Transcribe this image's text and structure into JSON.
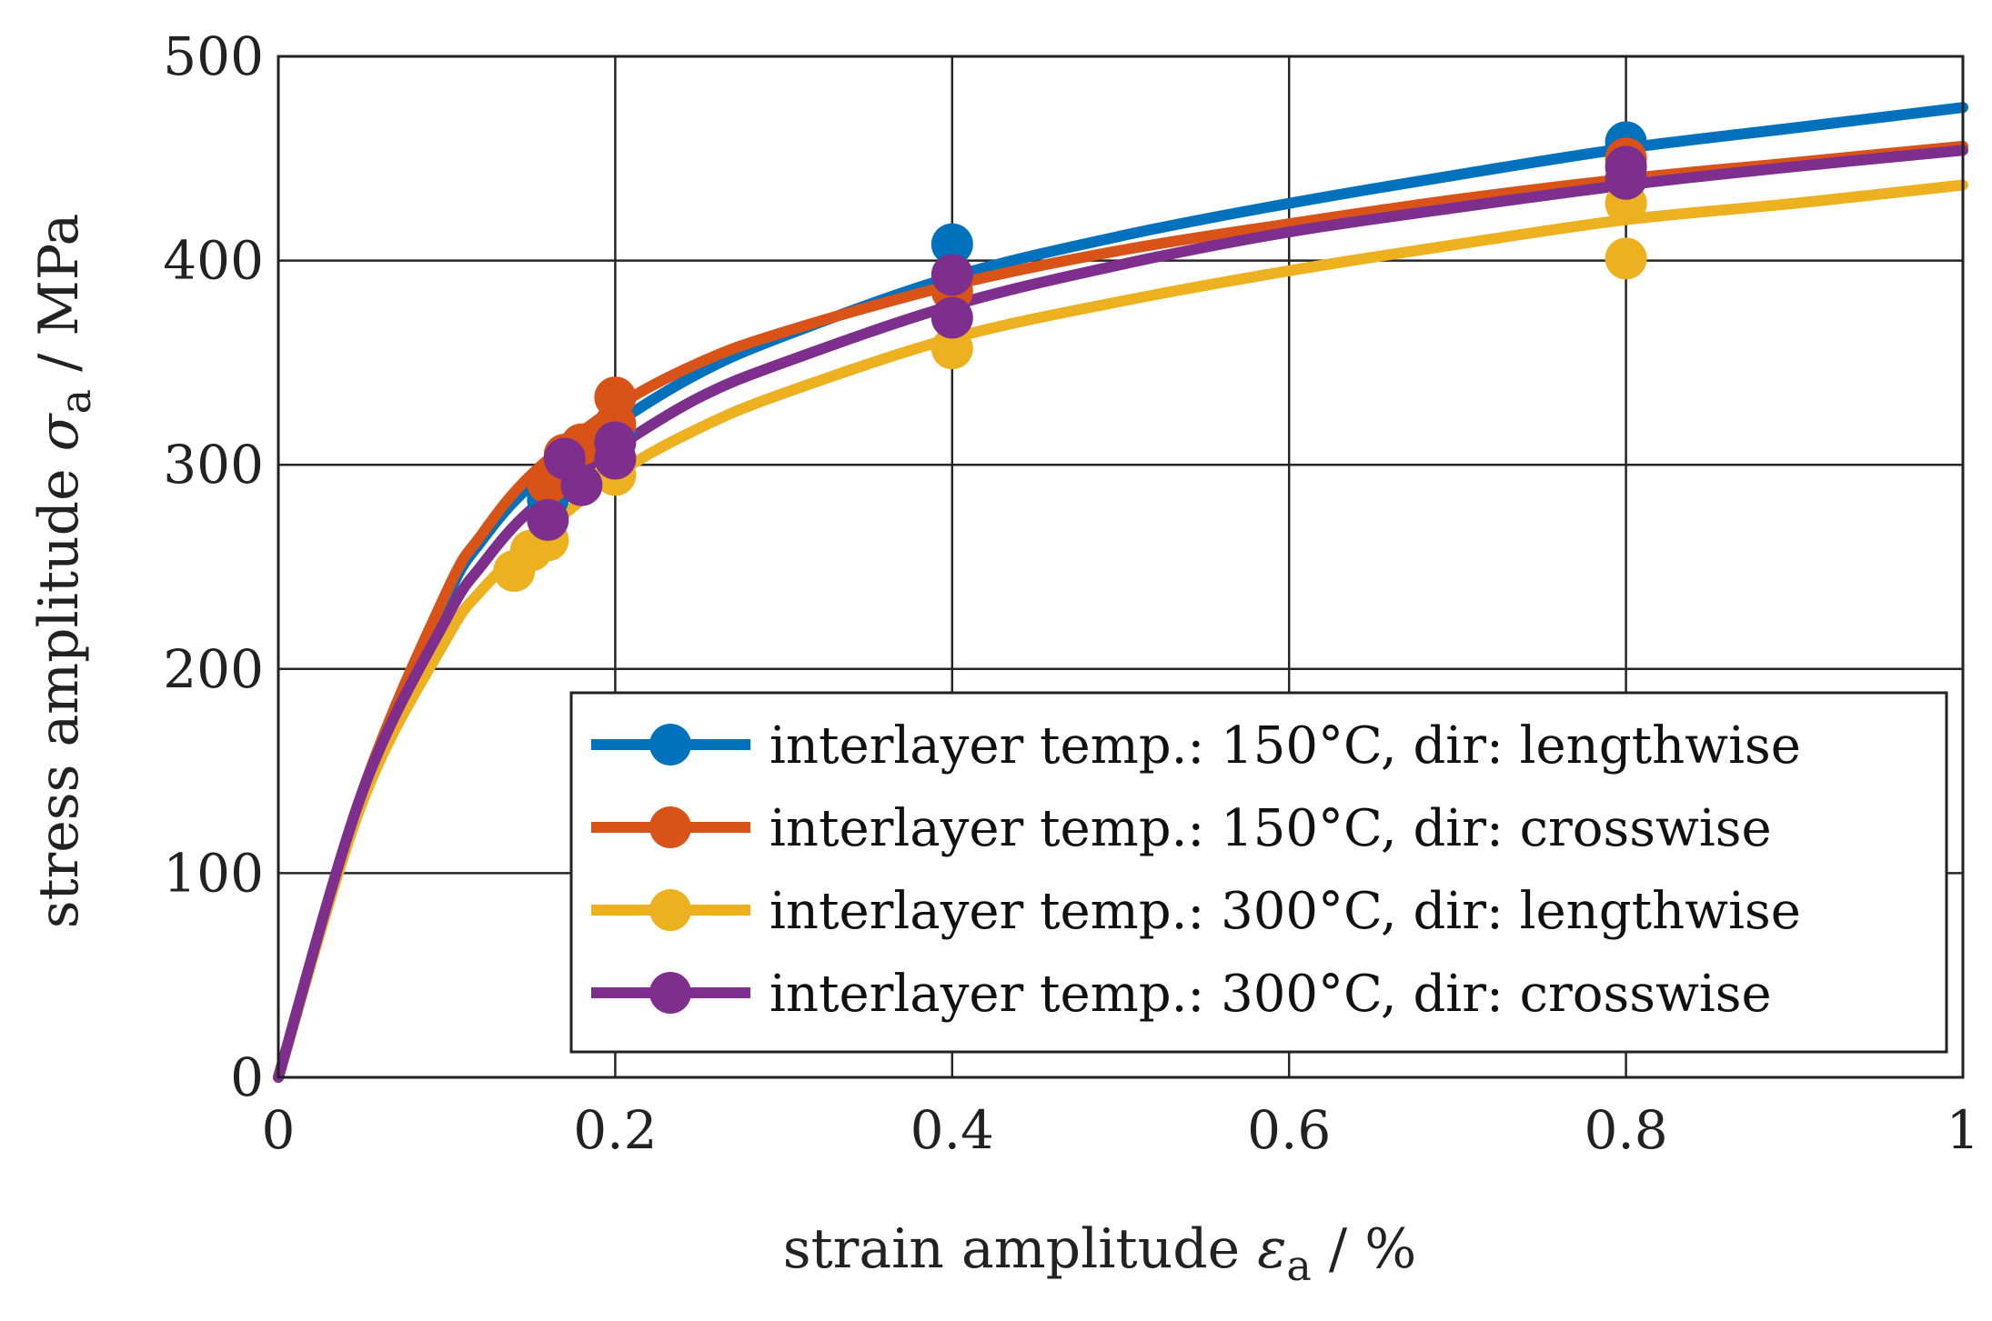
{
  "chart_data": {
    "type": "line",
    "title": "",
    "xlabel": {
      "main": "strain amplitude ",
      "symbol": "ε",
      "sub": "a",
      "unit": " / %"
    },
    "ylabel": {
      "main": "stress amplitude ",
      "symbol": "σ",
      "sub": "a",
      "unit": " / MPa"
    },
    "xlim": [
      0,
      1
    ],
    "ylim": [
      0,
      500
    ],
    "xticks": [
      0,
      0.2,
      0.4,
      0.6,
      0.8,
      1
    ],
    "xtick_labels": [
      "0",
      "0.2",
      "0.4",
      "0.6",
      "0.8",
      "1"
    ],
    "yticks": [
      0,
      100,
      200,
      300,
      400,
      500
    ],
    "ytick_labels": [
      "0",
      "100",
      "200",
      "300",
      "400",
      "500"
    ],
    "grid": true,
    "legend_position": "bottom-right",
    "series": [
      {
        "name": "interlayer temp.: 150°C, dir: lengthwise",
        "color": "#0072BD",
        "curve": [
          [
            0,
            0
          ],
          [
            0.05,
            140
          ],
          [
            0.1,
            235
          ],
          [
            0.12,
            262
          ],
          [
            0.15,
            290
          ],
          [
            0.2,
            320
          ],
          [
            0.25,
            345
          ],
          [
            0.3,
            363
          ],
          [
            0.4,
            392
          ],
          [
            0.5,
            412
          ],
          [
            0.6,
            428
          ],
          [
            0.7,
            442
          ],
          [
            0.8,
            455
          ],
          [
            0.9,
            465
          ],
          [
            1,
            475
          ]
        ],
        "points": [
          [
            0.16,
            283
          ],
          [
            0.17,
            298
          ],
          [
            0.2,
            315
          ],
          [
            0.4,
            408
          ],
          [
            0.8,
            458
          ]
        ]
      },
      {
        "name": "interlayer temp.: 150°C, dir: crosswise",
        "color": "#D95319",
        "curve": [
          [
            0,
            0
          ],
          [
            0.05,
            140
          ],
          [
            0.1,
            238
          ],
          [
            0.12,
            265
          ],
          [
            0.15,
            295
          ],
          [
            0.2,
            328
          ],
          [
            0.25,
            350
          ],
          [
            0.3,
            365
          ],
          [
            0.4,
            388
          ],
          [
            0.5,
            405
          ],
          [
            0.6,
            418
          ],
          [
            0.7,
            430
          ],
          [
            0.8,
            440
          ],
          [
            0.9,
            448
          ],
          [
            1,
            456
          ]
        ],
        "points": [
          [
            0.16,
            291
          ],
          [
            0.17,
            305
          ],
          [
            0.18,
            310
          ],
          [
            0.2,
            320
          ],
          [
            0.2,
            333
          ],
          [
            0.4,
            385
          ],
          [
            0.8,
            450
          ]
        ]
      },
      {
        "name": "interlayer temp.: 300°C, dir: lengthwise",
        "color": "#EDB120",
        "curve": [
          [
            0,
            0
          ],
          [
            0.05,
            135
          ],
          [
            0.1,
            215
          ],
          [
            0.12,
            238
          ],
          [
            0.15,
            262
          ],
          [
            0.2,
            295
          ],
          [
            0.25,
            318
          ],
          [
            0.3,
            335
          ],
          [
            0.4,
            362
          ],
          [
            0.5,
            380
          ],
          [
            0.6,
            395
          ],
          [
            0.7,
            408
          ],
          [
            0.8,
            420
          ],
          [
            0.9,
            428
          ],
          [
            1,
            437
          ]
        ],
        "points": [
          [
            0.14,
            248
          ],
          [
            0.15,
            258
          ],
          [
            0.16,
            263
          ],
          [
            0.2,
            295
          ],
          [
            0.4,
            357
          ],
          [
            0.8,
            401
          ],
          [
            0.8,
            428
          ]
        ]
      },
      {
        "name": "interlayer temp.: 300°C, dir: crosswise",
        "color": "#7E2F8E",
        "curve": [
          [
            0,
            0
          ],
          [
            0.05,
            140
          ],
          [
            0.1,
            225
          ],
          [
            0.12,
            250
          ],
          [
            0.15,
            278
          ],
          [
            0.2,
            308
          ],
          [
            0.25,
            333
          ],
          [
            0.3,
            350
          ],
          [
            0.4,
            378
          ],
          [
            0.5,
            398
          ],
          [
            0.6,
            414
          ],
          [
            0.7,
            426
          ],
          [
            0.8,
            437
          ],
          [
            0.9,
            446
          ],
          [
            1,
            454
          ]
        ],
        "points": [
          [
            0.16,
            273
          ],
          [
            0.17,
            303
          ],
          [
            0.18,
            290
          ],
          [
            0.2,
            303
          ],
          [
            0.2,
            311
          ],
          [
            0.4,
            372
          ],
          [
            0.4,
            393
          ],
          [
            0.8,
            440
          ],
          [
            0.8,
            446
          ]
        ]
      }
    ]
  }
}
